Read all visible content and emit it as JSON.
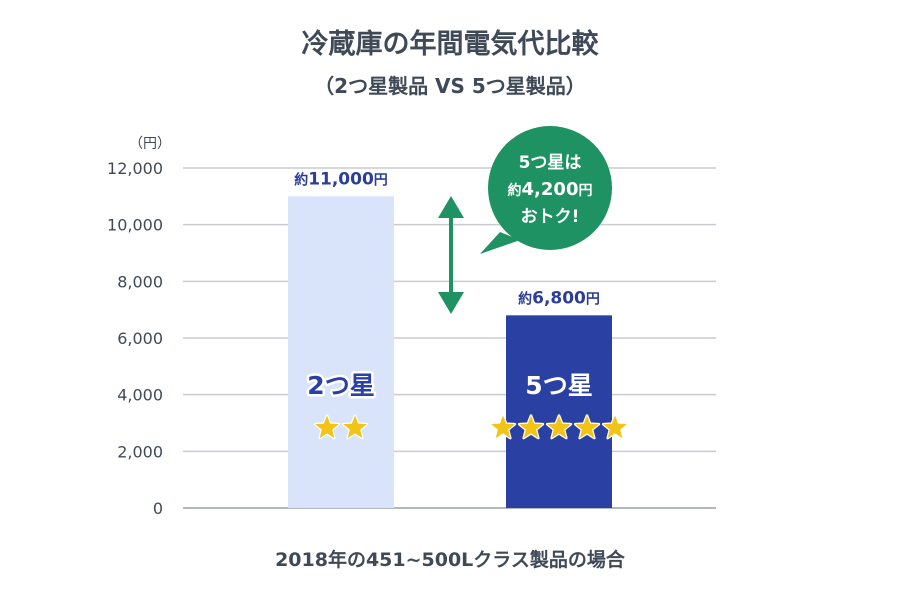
{
  "chart_data": {
    "type": "bar",
    "title": "冷蔵庫の年間電気代比較",
    "subtitle": "（2つ星製品 VS 5つ星製品）",
    "unit_label": "（円）",
    "categories": [
      "2つ星",
      "5つ星"
    ],
    "values": [
      11000,
      6800
    ],
    "stars": [
      2,
      5
    ],
    "data_labels": [
      {
        "prefix": "約",
        "value": "11,000",
        "suffix": "円"
      },
      {
        "prefix": "約",
        "value": "6,800",
        "suffix": "円"
      }
    ],
    "ylim": [
      0,
      12000
    ],
    "yticks": [
      0,
      2000,
      4000,
      6000,
      8000,
      10000,
      12000
    ],
    "ytick_labels": [
      "0",
      "2,000",
      "4,000",
      "6,000",
      "8,000",
      "10,000",
      "12,000"
    ],
    "grid": true,
    "colors": {
      "bar_2star": "#d9e4fb",
      "bar_5star": "#2b40a3",
      "label_2star": "#2b40a3",
      "label_5star": "#ffffff",
      "accent_green": "#1e9262",
      "star": "#f2c418"
    },
    "annotation": {
      "line1": "5つ星は",
      "line2_prefix": "約",
      "line2_value": "4,200",
      "line2_suffix": "円",
      "line3": "おトク!"
    },
    "footnote": "2018年の451~500Lクラス製品の場合"
  }
}
